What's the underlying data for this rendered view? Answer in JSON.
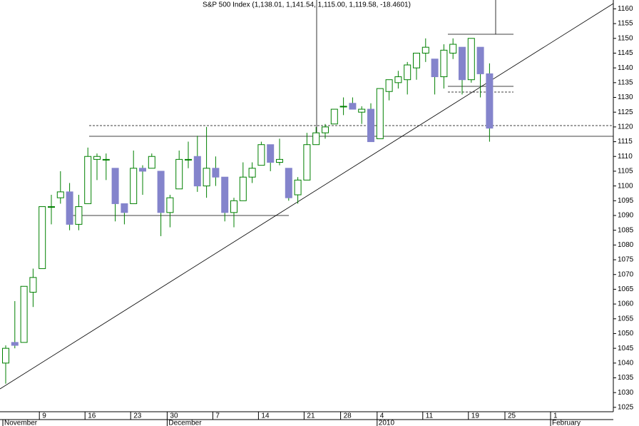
{
  "chart_data": {
    "type": "candlestick",
    "title": "S&P 500 Index (1,138.01, 1,141.54, 1,115.00, 1,119.58, -18.4601)",
    "categories": [
      null,
      null,
      null,
      null,
      "9",
      null,
      null,
      null,
      null,
      "16",
      null,
      null,
      null,
      null,
      "23",
      null,
      null,
      null,
      "30",
      null,
      null,
      null,
      null,
      "7",
      null,
      null,
      null,
      null,
      "14",
      null,
      null,
      null,
      null,
      "21",
      null,
      null,
      null,
      "28",
      null,
      null,
      null,
      "4",
      null,
      null,
      null,
      null,
      "11",
      null,
      null,
      null,
      null,
      "19",
      null,
      null,
      null,
      "25",
      null,
      null,
      null,
      null,
      "1"
    ],
    "month_labels": [
      {
        "index": 0,
        "label": "November"
      },
      {
        "index": 18,
        "label": "December"
      },
      {
        "index": 41,
        "label": "2010"
      },
      {
        "index": 60,
        "label": "February"
      }
    ],
    "series": [
      {
        "name": "S&P 500 Index",
        "up_color": "#ffffff",
        "down_color": "#8484cc",
        "line_color": "#008000",
        "open": [
          1040,
          1047,
          1047,
          1064,
          1072,
          1093,
          1096,
          1098,
          1087,
          1094,
          1109,
          1109,
          1106,
          1094,
          1094,
          1106,
          1106,
          1105,
          1091,
          1099,
          1109,
          1110,
          1100,
          1106,
          1103,
          1091,
          1095,
          1103,
          1107,
          1114,
          1108,
          1106,
          1097,
          1102,
          1114,
          1118,
          1121,
          1127,
          1128,
          1125,
          1126,
          1116,
          1132,
          1135,
          1136,
          1140,
          1145,
          1143,
          1137,
          1145,
          1147,
          1136,
          1147,
          1138.01,
          null,
          null,
          null,
          null,
          null,
          null,
          null
        ],
        "high": [
          1046,
          1061,
          1066,
          1072,
          1093,
          1097,
          1105,
          1101,
          1097,
          1113,
          1111,
          1111,
          1106,
          1094,
          1112,
          1107,
          1111,
          1105,
          1097,
          1112,
          1115,
          1117,
          1120,
          1110,
          1103,
          1096,
          1108,
          1108,
          1115,
          1114,
          1116,
          1106,
          1103,
          1118,
          1120,
          1121,
          1126,
          1130,
          1130,
          1127,
          1128,
          1133,
          1136,
          1139,
          1142,
          1145,
          1150,
          1143,
          1148,
          1150,
          1147,
          1150,
          1147,
          1141.54,
          null,
          null,
          null,
          null,
          null,
          null,
          null
        ],
        "low": [
          1033,
          1045,
          1047,
          1059,
          1072,
          1087,
          1094,
          1085,
          1085,
          1094,
          1102,
          1102,
          1088,
          1087,
          1094,
          1097,
          1106,
          1083,
          1086,
          1099,
          1106,
          1098,
          1096,
          1100,
          1088,
          1086,
          1095,
          1101,
          1107,
          1105,
          1107,
          1095,
          1094,
          1102,
          1114,
          1116,
          1121,
          1124,
          1126,
          1121,
          1115,
          1116,
          1129,
          1133,
          1131,
          1136,
          1142,
          1131,
          1133,
          1143,
          1131,
          1135,
          1130,
          1115,
          null,
          null,
          null,
          null,
          null,
          null,
          null
        ],
        "close": [
          1045,
          1046,
          1066,
          1069,
          1093,
          1093,
          1098,
          1087,
          1093,
          1110,
          1110,
          1109,
          1094,
          1091,
          1106,
          1105,
          1110,
          1091,
          1096,
          1109,
          1109,
          1100,
          1106,
          1103,
          1091,
          1095,
          1103,
          1106,
          1114,
          1108,
          1109,
          1096,
          1102,
          1114,
          1118,
          1120,
          1126,
          1127,
          1126,
          1126,
          1115,
          1133,
          1136,
          1137,
          1141,
          1145,
          1147,
          1137,
          1146,
          1148,
          1136,
          1150,
          1138,
          1119.58,
          null,
          null,
          null,
          null,
          null,
          null,
          null
        ]
      }
    ],
    "ylim": [
      1024,
      1163
    ],
    "yticks": [
      1025,
      1030,
      1035,
      1040,
      1045,
      1050,
      1055,
      1060,
      1065,
      1070,
      1075,
      1080,
      1085,
      1090,
      1095,
      1100,
      1105,
      1110,
      1115,
      1120,
      1125,
      1130,
      1135,
      1140,
      1145,
      1150,
      1155,
      1160
    ]
  }
}
